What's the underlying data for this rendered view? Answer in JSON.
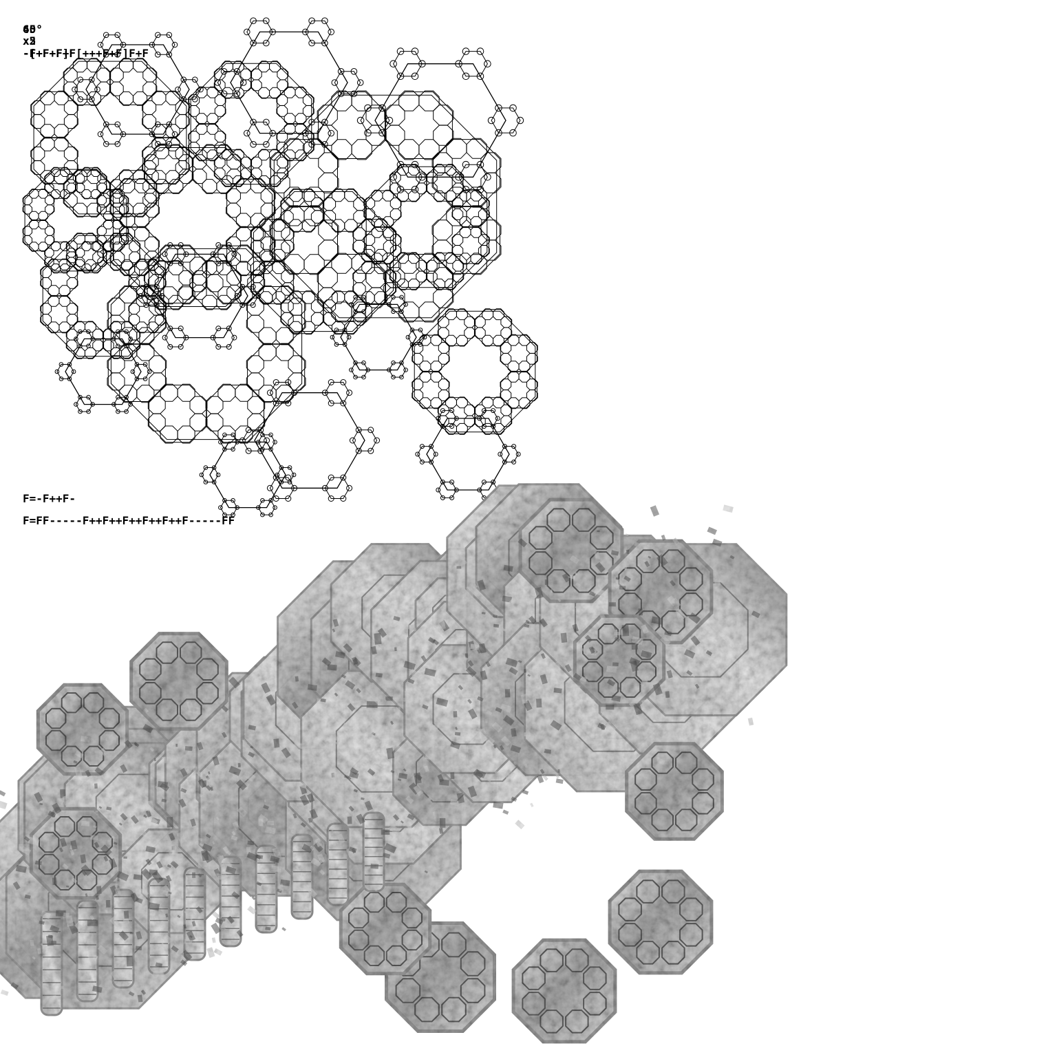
{
  "header": {
    "angle_labels": [
      "60°",
      "45°"
    ],
    "iteration_labels": [
      "x5",
      "x2"
    ],
    "axiom_labels": [
      "-[+F+F]F[+++F+F]F+F",
      "-F+F+F+F"
    ]
  },
  "rules": {
    "rule_1": "F=-F++F-",
    "rule_2": "F=FF-----F++F++F++F++F++F-----FF"
  },
  "colors": {
    "background": "#ffffff",
    "line": "#000000",
    "render_light": "#d6d6d6",
    "render_mid": "#9a9a9a",
    "render_dark": "#5f5f5f"
  }
}
